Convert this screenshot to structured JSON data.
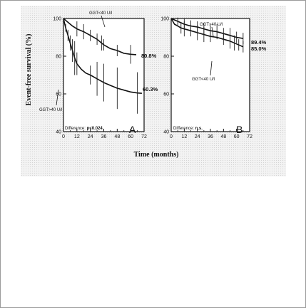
{
  "chart_data": [
    {
      "type": "line",
      "panel": "A",
      "xlabel": "Time (months)",
      "ylabel": "Event-free survival (%)",
      "xlim": [
        0,
        72
      ],
      "ylim": [
        40,
        100
      ],
      "xticks": [
        "0",
        "12",
        "24",
        "36",
        "48",
        "60",
        "72"
      ],
      "x_minor_ticks": [
        6,
        18,
        30,
        42,
        54,
        66
      ],
      "yticks": [
        "40",
        "60",
        "80",
        "100"
      ],
      "grid": false,
      "difference_label": "Difference:",
      "difference_value": "p<0.024",
      "series": [
        {
          "name": "GGT<40 U/l",
          "end_label": "80.8%",
          "x": [
            0,
            4,
            8,
            12,
            18,
            24,
            30,
            34,
            36,
            42,
            48,
            54,
            60,
            65
          ],
          "y": [
            100,
            98,
            96,
            94.5,
            93,
            91,
            89,
            87,
            86,
            84,
            83,
            81.5,
            81,
            80.8
          ],
          "error_bars": [
            [
              12,
              94.5,
              4
            ],
            [
              18,
              93,
              4
            ],
            [
              24,
              91,
              3
            ],
            [
              30,
              89,
              3
            ],
            [
              34,
              87,
              4
            ],
            [
              36,
              86,
              3
            ],
            [
              48,
              83,
              3
            ],
            [
              60,
              81,
              5
            ]
          ]
        },
        {
          "name": "GGT>40 U/l",
          "end_label": "60.3%",
          "x": [
            0,
            2,
            4,
            6,
            8,
            10,
            12,
            16,
            20,
            24,
            30,
            36,
            42,
            48,
            54,
            60,
            66,
            70
          ],
          "y": [
            100,
            95,
            91,
            87,
            83,
            79,
            76,
            73,
            71,
            70,
            68,
            66,
            64.5,
            63,
            62,
            61,
            60.5,
            60.3
          ],
          "error_bars": [
            [
              2,
              95,
              2
            ],
            [
              4,
              91,
              3
            ],
            [
              6,
              87,
              4
            ],
            [
              8,
              83,
              6
            ],
            [
              10,
              79,
              9
            ],
            [
              12,
              76,
              6
            ],
            [
              24,
              70,
              5
            ],
            [
              30,
              68,
              9
            ],
            [
              36,
              66,
              10
            ],
            [
              48,
              63,
              11
            ],
            [
              66,
              60.5,
              11
            ]
          ]
        }
      ]
    },
    {
      "type": "line",
      "panel": "B",
      "xlabel": "Time (months)",
      "xlim": [
        0,
        72
      ],
      "ylim": [
        40,
        100
      ],
      "xticks": [
        "0",
        "12",
        "24",
        "36",
        "48",
        "60",
        "72"
      ],
      "x_minor_ticks": [
        6,
        18,
        30,
        42,
        54,
        66
      ],
      "yticks": [
        "40",
        "60",
        "80",
        "100"
      ],
      "grid": false,
      "difference_label": "Difference:",
      "difference_value": "n.s.",
      "series": [
        {
          "name": "GGT>40 U/l",
          "end_label": "89.4%",
          "x": [
            0,
            6,
            12,
            18,
            24,
            30,
            36,
            42,
            48,
            54,
            60,
            66
          ],
          "y": [
            100,
            98.5,
            97,
            96,
            95.5,
            94.5,
            93.5,
            93,
            92,
            91,
            90,
            89.4
          ],
          "error_bars": [
            [
              6,
              98.5,
              2
            ],
            [
              12,
              97,
              3
            ],
            [
              18,
              96,
              3
            ],
            [
              24,
              95.5,
              3
            ],
            [
              30,
              94.5,
              3
            ],
            [
              36,
              93.5,
              3
            ],
            [
              42,
              93,
              4
            ],
            [
              48,
              92,
              3
            ],
            [
              54,
              91,
              4
            ],
            [
              60,
              90,
              3
            ],
            [
              66,
              89.4,
              3
            ]
          ]
        },
        {
          "name": "GGT<40 U/l",
          "end_label": "85.0%",
          "x": [
            0,
            3,
            6,
            9,
            12,
            18,
            24,
            30,
            36,
            42,
            48,
            54,
            60,
            66
          ],
          "y": [
            100,
            97,
            96,
            95,
            94.5,
            93.5,
            92.5,
            91.5,
            90.5,
            90,
            89,
            88,
            86.5,
            85
          ],
          "error_bars": [
            [
              9,
              95,
              3
            ],
            [
              12,
              94.5,
              4
            ],
            [
              18,
              93.5,
              3
            ],
            [
              24,
              92.5,
              4
            ],
            [
              30,
              91.5,
              4
            ],
            [
              36,
              90.5,
              3
            ],
            [
              48,
              89,
              3
            ],
            [
              54,
              88,
              4
            ],
            [
              58,
              87,
              4
            ],
            [
              62,
              86,
              3
            ],
            [
              66,
              85,
              3
            ]
          ]
        }
      ]
    }
  ]
}
